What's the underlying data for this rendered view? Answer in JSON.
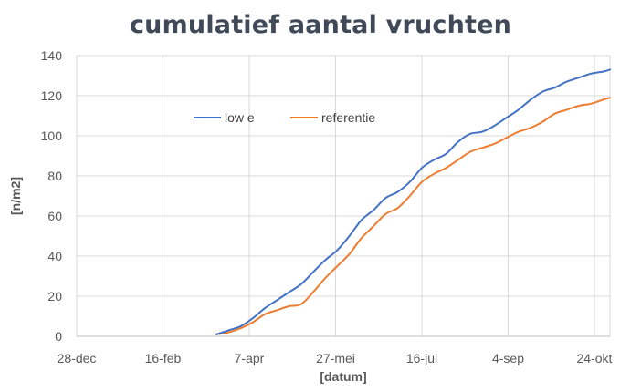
{
  "chart_data": {
    "type": "line",
    "title": "cumulatief aantal vruchten",
    "xlabel": "[datum]",
    "ylabel": "[n/m2]",
    "ylim": [
      0,
      140
    ],
    "yticks": [
      0,
      20,
      40,
      60,
      80,
      100,
      120,
      140
    ],
    "xlim": [
      "2020-12-28",
      "2021-11-02"
    ],
    "xticks": [
      {
        "date": "2020-12-28",
        "label": "28-dec"
      },
      {
        "date": "2021-02-16",
        "label": "16-feb"
      },
      {
        "date": "2021-04-07",
        "label": "7-apr"
      },
      {
        "date": "2021-05-27",
        "label": "27-mei"
      },
      {
        "date": "2021-07-16",
        "label": "16-jul"
      },
      {
        "date": "2021-09-04",
        "label": "4-sep"
      },
      {
        "date": "2021-10-24",
        "label": "24-okt"
      }
    ],
    "grid": true,
    "legend_position": "top-center",
    "series": [
      {
        "name": "low e",
        "color": "#4472c4",
        "x": [
          "2021-03-19",
          "2021-03-26",
          "2021-04-02",
          "2021-04-09",
          "2021-04-16",
          "2021-04-23",
          "2021-04-30",
          "2021-05-07",
          "2021-05-14",
          "2021-05-21",
          "2021-05-28",
          "2021-06-04",
          "2021-06-11",
          "2021-06-18",
          "2021-06-25",
          "2021-07-02",
          "2021-07-09",
          "2021-07-16",
          "2021-07-23",
          "2021-07-30",
          "2021-08-06",
          "2021-08-13",
          "2021-08-20",
          "2021-08-27",
          "2021-09-03",
          "2021-09-10",
          "2021-09-17",
          "2021-09-24",
          "2021-10-01",
          "2021-10-08",
          "2021-10-15",
          "2021-10-22",
          "2021-10-29",
          "2021-11-02"
        ],
        "y": [
          1,
          3,
          5,
          9,
          14,
          18,
          22,
          26,
          32,
          38,
          43,
          50,
          58,
          63,
          69,
          72,
          77,
          84,
          88,
          91,
          97,
          101,
          102,
          105,
          109,
          113,
          118,
          122,
          124,
          127,
          129,
          131,
          132,
          133
        ]
      },
      {
        "name": "referentie",
        "color": "#ed7d31",
        "x": [
          "2021-03-19",
          "2021-03-26",
          "2021-04-02",
          "2021-04-09",
          "2021-04-16",
          "2021-04-23",
          "2021-04-30",
          "2021-05-07",
          "2021-05-14",
          "2021-05-21",
          "2021-05-28",
          "2021-06-04",
          "2021-06-11",
          "2021-06-18",
          "2021-06-25",
          "2021-07-02",
          "2021-07-09",
          "2021-07-16",
          "2021-07-23",
          "2021-07-30",
          "2021-08-06",
          "2021-08-13",
          "2021-08-20",
          "2021-08-27",
          "2021-09-03",
          "2021-09-10",
          "2021-09-17",
          "2021-09-24",
          "2021-10-01",
          "2021-10-08",
          "2021-10-15",
          "2021-10-22",
          "2021-10-29",
          "2021-11-02"
        ],
        "y": [
          1,
          2,
          4,
          7,
          11,
          13,
          15,
          16,
          22,
          29,
          35,
          41,
          49,
          55,
          61,
          64,
          70,
          77,
          81,
          84,
          88,
          92,
          94,
          96,
          99,
          102,
          104,
          107,
          111,
          113,
          115,
          116,
          118,
          119
        ]
      }
    ]
  }
}
